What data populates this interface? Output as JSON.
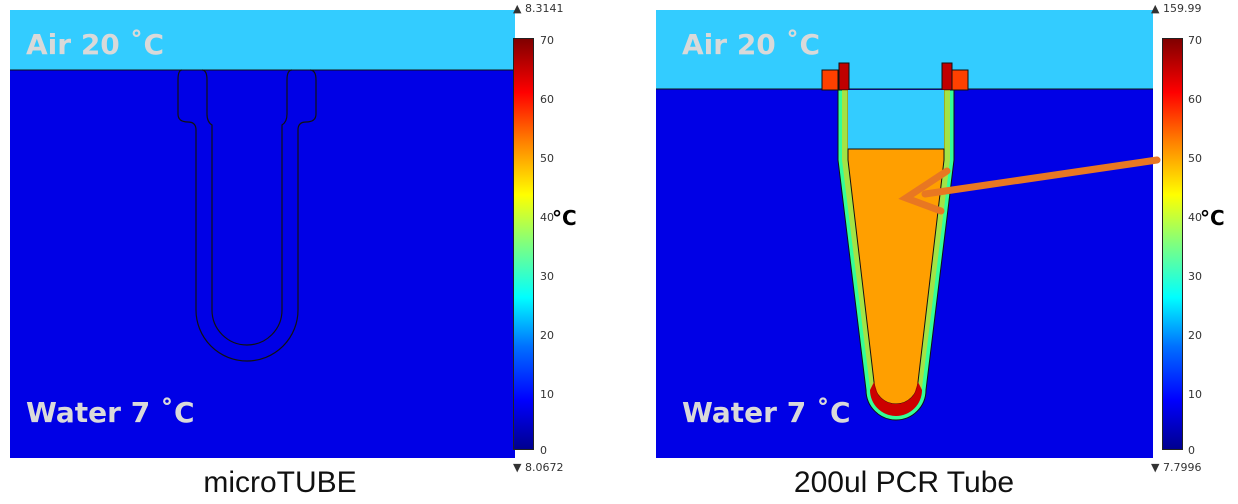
{
  "panels": [
    {
      "caption": "microTUBE",
      "air_label": "Air 20 ˚C",
      "water_label": "Water 7 ˚C",
      "max_value": "▲ 8.3141",
      "min_value": "▼ 8.0672",
      "unit": "°C",
      "ticks": [
        "70",
        "60",
        "50",
        "40",
        "30",
        "20",
        "10",
        "0"
      ]
    },
    {
      "caption": "200ul PCR Tube",
      "air_label": "Air 20 ˚C",
      "water_label": "Water 7 ˚C",
      "max_value": "▲ 159.99",
      "min_value": "▼ 7.7996",
      "unit": "°C",
      "ticks": [
        "70",
        "60",
        "50",
        "40",
        "30",
        "20",
        "10",
        "0"
      ]
    }
  ],
  "colors": {
    "air": "#33ccff",
    "water": "#0000e6",
    "tube_fill_hot": "#ff9f00",
    "arrow": "#e87722"
  }
}
